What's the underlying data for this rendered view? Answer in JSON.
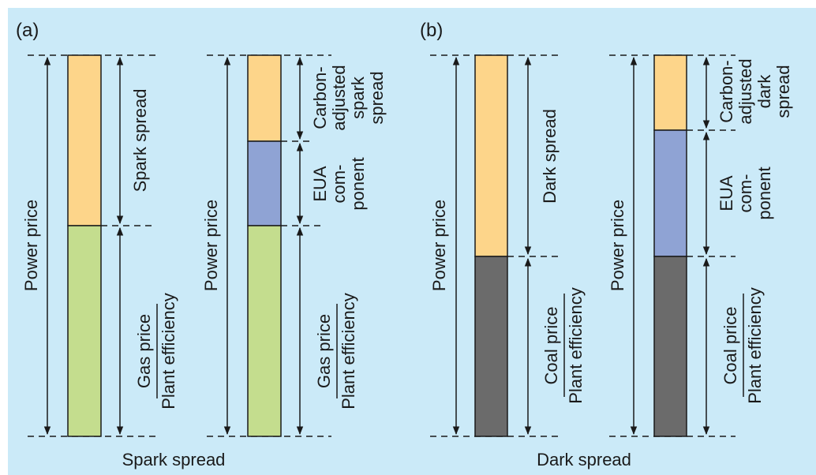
{
  "colors": {
    "background": "#cbeaf8",
    "spread": "#fdd58a",
    "gas": "#c4dd8e",
    "eua": "#8fa3d4",
    "coal": "#6b6b6b",
    "ink": "#1a1a1a"
  },
  "panel_a": {
    "label": "(a)",
    "caption": "Spark spread",
    "bar1": {
      "power": "Power price",
      "spread": "Spark spread",
      "fuel": "Gas price",
      "efficiency": "Plant efficiency"
    },
    "bar2": {
      "power": "Power price",
      "eua": [
        "EUA",
        "com-",
        "ponent"
      ],
      "spread": [
        "Carbon-",
        "adjusted",
        "spark",
        "spread"
      ],
      "fuel": "Gas price",
      "efficiency": "Plant efficiency"
    }
  },
  "panel_b": {
    "label": "(b)",
    "caption": "Dark spread",
    "bar1": {
      "power": "Power price",
      "spread": "Dark spread",
      "fuel": "Coal price",
      "efficiency": "Plant efficiency"
    },
    "bar2": {
      "power": "Power price",
      "eua": [
        "EUA",
        "com-",
        "ponent"
      ],
      "spread": [
        "Carbon-",
        "adjusted",
        "dark",
        "spread"
      ],
      "fuel": "Coal price",
      "efficiency": "Plant efficiency"
    }
  }
}
